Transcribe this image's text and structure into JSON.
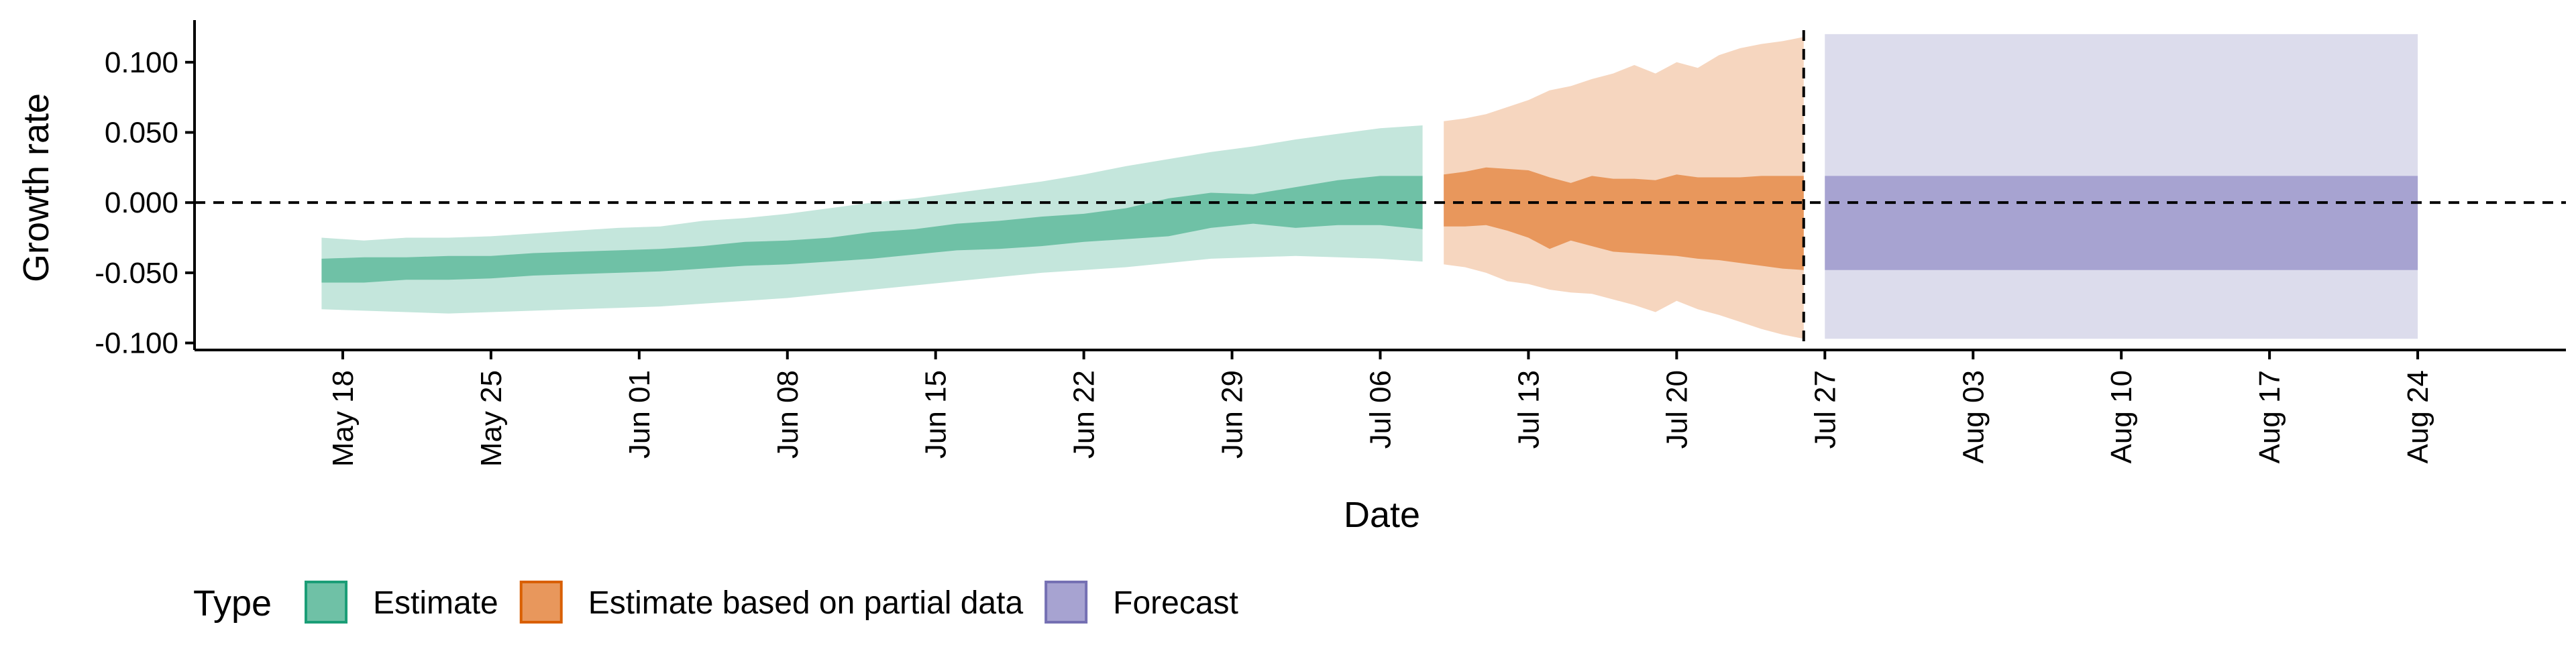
{
  "chart_data": {
    "type": "area",
    "xlabel": "Date",
    "ylabel": "Growth rate",
    "ylim": [
      -0.105,
      0.13
    ],
    "y_ticks": [
      "0.100",
      "0.050",
      "0.000",
      "-0.050",
      "-0.100"
    ],
    "x_range": [
      "2020-05-11",
      "2020-08-31"
    ],
    "x_ticks": [
      {
        "date": "2020-05-18",
        "label": "May 18"
      },
      {
        "date": "2020-05-25",
        "label": "May 25"
      },
      {
        "date": "2020-06-01",
        "label": "Jun 01"
      },
      {
        "date": "2020-06-08",
        "label": "Jun 08"
      },
      {
        "date": "2020-06-15",
        "label": "Jun 15"
      },
      {
        "date": "2020-06-22",
        "label": "Jun 22"
      },
      {
        "date": "2020-06-29",
        "label": "Jun 29"
      },
      {
        "date": "2020-07-06",
        "label": "Jul 06"
      },
      {
        "date": "2020-07-13",
        "label": "Jul 13"
      },
      {
        "date": "2020-07-20",
        "label": "Jul 20"
      },
      {
        "date": "2020-07-27",
        "label": "Jul 27"
      },
      {
        "date": "2020-08-03",
        "label": "Aug 03"
      },
      {
        "date": "2020-08-10",
        "label": "Aug 10"
      },
      {
        "date": "2020-08-17",
        "label": "Aug 17"
      },
      {
        "date": "2020-08-24",
        "label": "Aug 24"
      }
    ],
    "reference_lines": {
      "horizontal_y": 0,
      "vertical_date": "2020-07-26"
    },
    "legend": {
      "title": "Type",
      "position": "bottom-left"
    },
    "series": [
      {
        "name": "Estimate",
        "color_outer": "#c4e6dc",
        "color_inner": "#6fc1a6",
        "dates": [
          "2020-05-17",
          "2020-05-19",
          "2020-05-21",
          "2020-05-23",
          "2020-05-25",
          "2020-05-27",
          "2020-05-29",
          "2020-05-31",
          "2020-06-02",
          "2020-06-04",
          "2020-06-06",
          "2020-06-08",
          "2020-06-10",
          "2020-06-12",
          "2020-06-14",
          "2020-06-16",
          "2020-06-18",
          "2020-06-20",
          "2020-06-22",
          "2020-06-24",
          "2020-06-26",
          "2020-06-28",
          "2020-06-30",
          "2020-07-02",
          "2020-07-04",
          "2020-07-06",
          "2020-07-08"
        ],
        "outer_upper": [
          -0.025,
          -0.027,
          -0.025,
          -0.025,
          -0.024,
          -0.022,
          -0.02,
          -0.018,
          -0.017,
          -0.013,
          -0.011,
          -0.008,
          -0.004,
          0.0,
          0.003,
          0.007,
          0.011,
          0.015,
          0.02,
          0.026,
          0.031,
          0.036,
          0.04,
          0.045,
          0.049,
          0.053,
          0.055
        ],
        "inner_upper": [
          -0.04,
          -0.039,
          -0.039,
          -0.038,
          -0.038,
          -0.036,
          -0.035,
          -0.034,
          -0.033,
          -0.031,
          -0.028,
          -0.027,
          -0.025,
          -0.021,
          -0.019,
          -0.015,
          -0.013,
          -0.01,
          -0.008,
          -0.004,
          0.003,
          0.007,
          0.006,
          0.011,
          0.016,
          0.019,
          0.019
        ],
        "inner_lower": [
          -0.057,
          -0.057,
          -0.055,
          -0.055,
          -0.054,
          -0.052,
          -0.051,
          -0.05,
          -0.049,
          -0.047,
          -0.045,
          -0.044,
          -0.042,
          -0.04,
          -0.037,
          -0.034,
          -0.033,
          -0.031,
          -0.028,
          -0.026,
          -0.024,
          -0.018,
          -0.015,
          -0.018,
          -0.016,
          -0.016,
          -0.019
        ],
        "outer_lower": [
          -0.076,
          -0.077,
          -0.078,
          -0.079,
          -0.078,
          -0.077,
          -0.076,
          -0.075,
          -0.074,
          -0.072,
          -0.07,
          -0.068,
          -0.065,
          -0.062,
          -0.059,
          -0.056,
          -0.053,
          -0.05,
          -0.048,
          -0.046,
          -0.043,
          -0.04,
          -0.039,
          -0.038,
          -0.039,
          -0.04,
          -0.042
        ]
      },
      {
        "name": "Estimate based on partial data",
        "color_outer": "#f6d6bf",
        "color_inner": "#e8975c",
        "dates": [
          "2020-07-09",
          "2020-07-10",
          "2020-07-11",
          "2020-07-12",
          "2020-07-13",
          "2020-07-14",
          "2020-07-15",
          "2020-07-16",
          "2020-07-17",
          "2020-07-18",
          "2020-07-19",
          "2020-07-20",
          "2020-07-21",
          "2020-07-22",
          "2020-07-23",
          "2020-07-24",
          "2020-07-25",
          "2020-07-26"
        ],
        "outer_upper": [
          0.058,
          0.06,
          0.063,
          0.068,
          0.073,
          0.08,
          0.083,
          0.088,
          0.092,
          0.098,
          0.092,
          0.1,
          0.096,
          0.105,
          0.11,
          0.113,
          0.115,
          0.118
        ],
        "inner_upper": [
          0.02,
          0.022,
          0.025,
          0.024,
          0.023,
          0.018,
          0.014,
          0.019,
          0.017,
          0.017,
          0.016,
          0.02,
          0.018,
          0.018,
          0.018,
          0.019,
          0.019,
          0.019
        ],
        "inner_lower": [
          -0.017,
          -0.017,
          -0.016,
          -0.02,
          -0.025,
          -0.033,
          -0.027,
          -0.031,
          -0.035,
          -0.036,
          -0.037,
          -0.038,
          -0.04,
          -0.041,
          -0.043,
          -0.045,
          -0.047,
          -0.048
        ],
        "outer_lower": [
          -0.044,
          -0.046,
          -0.05,
          -0.056,
          -0.058,
          -0.062,
          -0.064,
          -0.065,
          -0.069,
          -0.073,
          -0.078,
          -0.07,
          -0.076,
          -0.08,
          -0.085,
          -0.09,
          -0.094,
          -0.097
        ]
      },
      {
        "name": "Forecast",
        "color_outer": "#dcdcec",
        "color_inner": "#a7a3d1",
        "dates": [
          "2020-07-27",
          "2020-08-24"
        ],
        "outer_upper": [
          0.12,
          0.12
        ],
        "inner_upper": [
          0.019,
          0.019
        ],
        "inner_lower": [
          -0.048,
          -0.048
        ],
        "outer_lower": [
          -0.097,
          -0.097
        ]
      }
    ]
  },
  "legend_colors": {
    "Estimate": {
      "fill": "#6fc1a6",
      "stroke": "#1b9e77"
    },
    "Estimate based on partial data": {
      "fill": "#e8975c",
      "stroke": "#d95f02"
    },
    "Forecast": {
      "fill": "#a7a3d1",
      "stroke": "#7570b3"
    }
  }
}
